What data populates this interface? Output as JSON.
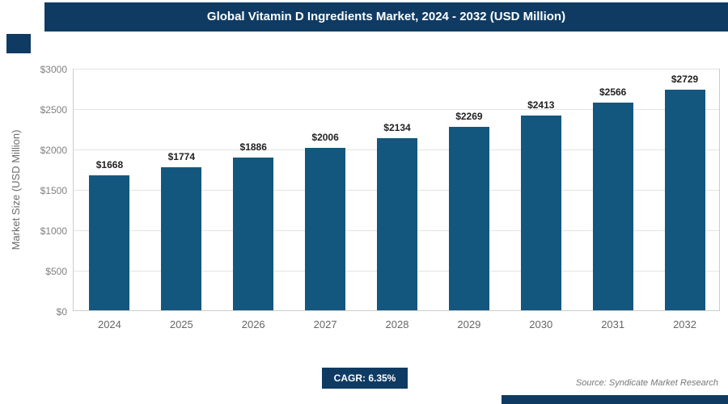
{
  "title_bar": {
    "title": "Global Vitamin D Ingredients Market, 2024 - 2032 (USD Million)"
  },
  "chart_data": {
    "type": "bar",
    "title": "Global Vitamin D Ingredients Market, 2024 - 2032 (USD Million)",
    "categories": [
      "2024",
      "2025",
      "2026",
      "2027",
      "2028",
      "2029",
      "2030",
      "2031",
      "2032"
    ],
    "values": [
      1668,
      1774,
      1886,
      2006,
      2134,
      2269,
      2413,
      2566,
      2729
    ],
    "bar_labels": [
      "$1668",
      "$1774",
      "$1886",
      "$2006",
      "$2134",
      "$2269",
      "$2413",
      "$2566",
      "$2729"
    ],
    "xlabel": "",
    "ylabel": "Market Size (USD Million)",
    "ylim": [
      0,
      3000
    ],
    "yticks": [
      "$0",
      "$500",
      "$1000",
      "$1500",
      "$2000",
      "$2500",
      "$3000"
    ],
    "grid": true,
    "legend_position": "none",
    "bar_color": "#14577e"
  },
  "footer": {
    "cagr_label": "CAGR: 6.35%",
    "source": "Source: Syndicate Market Research"
  },
  "colors": {
    "accent": "#0f3b63",
    "bar": "#14577e"
  }
}
